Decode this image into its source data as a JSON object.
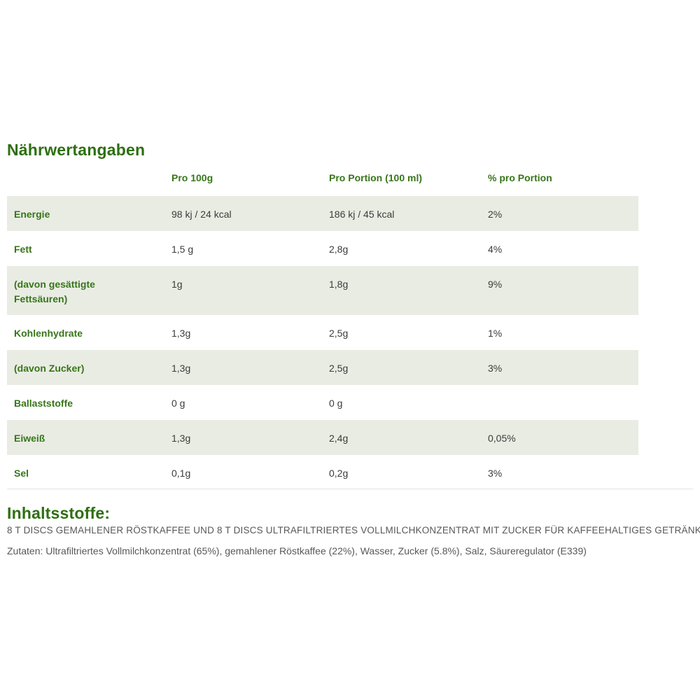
{
  "colors": {
    "green_dark": "#2e6f12",
    "green": "#37761a",
    "row_shaded_bg": "#e9ece3",
    "value_text": "#3b3b3b",
    "muted_text": "#57585a",
    "divider": "#e3e3e3"
  },
  "nutrition": {
    "title": "Nährwertangaben",
    "columns": [
      "Pro 100g",
      "Pro Portion (100 ml)",
      "% pro Portion"
    ],
    "rows": [
      {
        "label": "Energie",
        "per_100g": "98 kj / 24 kcal",
        "per_portion": "186 kj / 45 kcal",
        "percent": "2%"
      },
      {
        "label": "Fett",
        "per_100g": "1,5 g",
        "per_portion": "2,8g",
        "percent": "4%"
      },
      {
        "label": "(davon gesättigte Fettsäuren)",
        "per_100g": "1g",
        "per_portion": "1,8g",
        "percent": "9%"
      },
      {
        "label": "Kohlenhydrate",
        "per_100g": "1,3g",
        "per_portion": "2,5g",
        "percent": "1%"
      },
      {
        "label": "(davon Zucker)",
        "per_100g": "1,3g",
        "per_portion": "2,5g",
        "percent": "3%"
      },
      {
        "label": "Ballaststoffe",
        "per_100g": "0 g",
        "per_portion": "0 g",
        "percent": ""
      },
      {
        "label": "Eiweiß",
        "per_100g": "1,3g",
        "per_portion": "2,4g",
        "percent": "0,05%"
      },
      {
        "label": "Sel",
        "per_100g": "0,1g",
        "per_portion": "0,2g",
        "percent": "3%"
      }
    ]
  },
  "ingredients": {
    "title": "Inhaltsstoffe:",
    "description": "8 T DISCS GEMAHLENER RÖSTKAFFEE UND 8 T DISCS ULTRAFILTRIERTES VOLLMILCHKONZENTRAT MIT ZUCKER FÜR KAFFEEHALTIGES GETRÄNK",
    "zutaten": "Zutaten: Ultrafiltriertes Vollmilchkonzentrat (65%), gemahlener Röstkaffee (22%), Wasser, Zucker (5.8%), Salz, Säureregulator (E339)"
  }
}
